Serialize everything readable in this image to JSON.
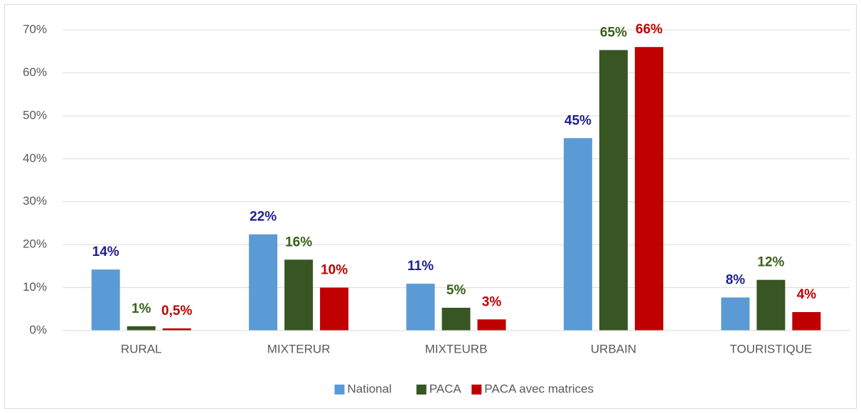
{
  "chart_data": {
    "type": "bar",
    "categories": [
      "RURAL",
      "MIXTERUR",
      "MIXTEURB",
      "URBAIN",
      "TOURISTIQUE"
    ],
    "series": [
      {
        "name": "National",
        "color": "#5b9bd5",
        "label_color": "#1f1f8f",
        "values": [
          14.2,
          22.4,
          10.9,
          44.8,
          7.7
        ],
        "value_labels": [
          "14%",
          "22%",
          "11%",
          "45%",
          "8%"
        ]
      },
      {
        "name": "PACA",
        "color": "#375623",
        "label_color": "#3a5f1a",
        "values": [
          1.0,
          16.5,
          5.3,
          65.3,
          11.8
        ],
        "value_labels": [
          "1%",
          "16%",
          "5%",
          "65%",
          "12%"
        ]
      },
      {
        "name": "PACA avec matrices",
        "color": "#c00000",
        "label_color": "#c00000",
        "values": [
          0.5,
          10.0,
          2.6,
          66.0,
          4.3
        ],
        "value_labels": [
          "0,5%",
          "10%",
          "3%",
          "66%",
          "4%"
        ]
      }
    ],
    "ylim": [
      0,
      70
    ],
    "yticks": [
      {
        "value": 0,
        "label": "0%"
      },
      {
        "value": 10,
        "label": "10%"
      },
      {
        "value": 20,
        "label": "20%"
      },
      {
        "value": 30,
        "label": "30%"
      },
      {
        "value": 40,
        "label": "40%"
      },
      {
        "value": 50,
        "label": "50%"
      },
      {
        "value": 60,
        "label": "60%"
      },
      {
        "value": 70,
        "label": "70%"
      }
    ],
    "grid": true,
    "legend": "bottom"
  }
}
